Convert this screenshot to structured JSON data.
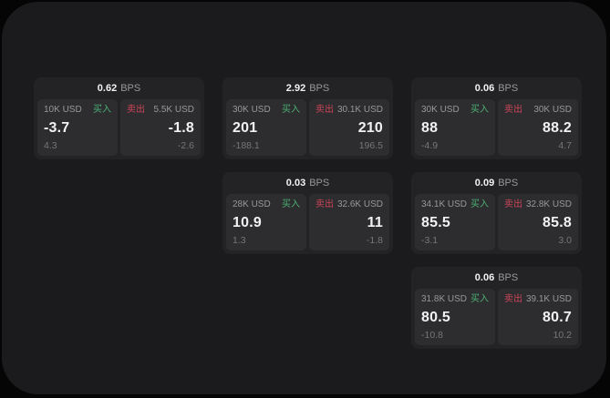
{
  "theme": {
    "bg": "#050505",
    "panel_bg": "#1b1b1d",
    "card_bg": "#232326",
    "tile_bg": "#2d2d30",
    "text_primary": "#f2f2f3",
    "text_secondary": "#98989c",
    "text_muted": "#76767a",
    "buy_color": "#4caf72",
    "sell_color": "#cc4458"
  },
  "labels": {
    "bps": "BPS",
    "buy": "买入",
    "sell": "卖出"
  },
  "cards": [
    {
      "bps": "0.62",
      "buy": {
        "amount": "10K USD",
        "price": "-3.7",
        "delta": "4.3"
      },
      "sell": {
        "amount": "5.5K USD",
        "price": "-1.8",
        "delta": "-2.6"
      }
    },
    {
      "bps": "2.92",
      "buy": {
        "amount": "30K USD",
        "price": "201",
        "delta": "-188.1"
      },
      "sell": {
        "amount": "30.1K USD",
        "price": "210",
        "delta": "196.5"
      }
    },
    {
      "bps": "0.06",
      "buy": {
        "amount": "30K USD",
        "price": "88",
        "delta": "-4.9"
      },
      "sell": {
        "amount": "30K USD",
        "price": "88.2",
        "delta": "4.7"
      }
    },
    {
      "bps": "0.03",
      "buy": {
        "amount": "28K USD",
        "price": "10.9",
        "delta": "1.3"
      },
      "sell": {
        "amount": "32.6K USD",
        "price": "11",
        "delta": "-1.8"
      }
    },
    {
      "bps": "0.09",
      "buy": {
        "amount": "34.1K USD",
        "price": "85.5",
        "delta": "-3.1"
      },
      "sell": {
        "amount": "32.8K USD",
        "price": "85.8",
        "delta": "3.0"
      }
    },
    {
      "bps": "0.06",
      "buy": {
        "amount": "31.8K USD",
        "price": "80.5",
        "delta": "-10.8"
      },
      "sell": {
        "amount": "39.1K USD",
        "price": "80.7",
        "delta": "10.2"
      }
    }
  ]
}
